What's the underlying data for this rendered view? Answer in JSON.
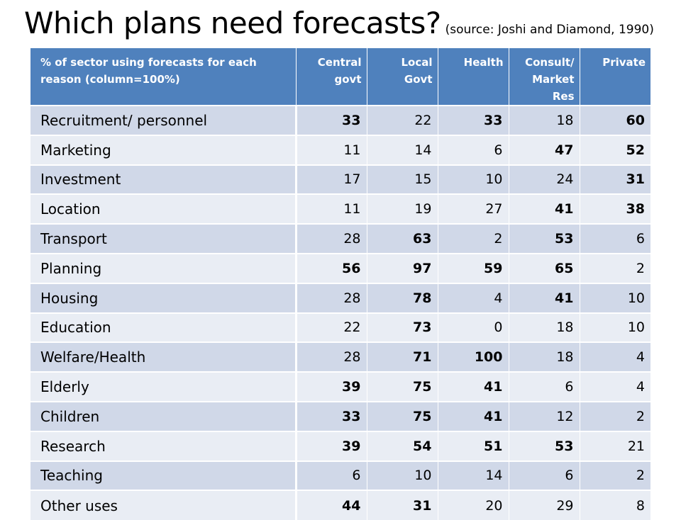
{
  "title": {
    "main": "Which plans need forecasts?",
    "source": "(source: Joshi and Diamond, 1990)"
  },
  "table": {
    "headers": [
      "% of sector using forecasts for each reason (column=100%)",
      "Central govt",
      "Local Govt",
      "Health",
      "Consult/ Market Res",
      "Private"
    ],
    "rows": [
      {
        "label": "Recruitment/ personnel",
        "values": [
          "33",
          "22",
          "33",
          "18",
          "60"
        ],
        "bold": [
          true,
          false,
          true,
          false,
          true
        ]
      },
      {
        "label": "Marketing",
        "values": [
          "11",
          "14",
          "6",
          "47",
          "52"
        ],
        "bold": [
          false,
          false,
          false,
          true,
          true
        ]
      },
      {
        "label": "Investment",
        "values": [
          "17",
          "15",
          "10",
          "24",
          "31"
        ],
        "bold": [
          false,
          false,
          false,
          false,
          true
        ]
      },
      {
        "label": "Location",
        "values": [
          "11",
          "19",
          "27",
          "41",
          "38"
        ],
        "bold": [
          false,
          false,
          false,
          true,
          true
        ]
      },
      {
        "label": "Transport",
        "values": [
          "28",
          "63",
          "2",
          "53",
          "6"
        ],
        "bold": [
          false,
          true,
          false,
          true,
          false
        ]
      },
      {
        "label": "Planning",
        "values": [
          "56",
          "97",
          "59",
          "65",
          "2"
        ],
        "bold": [
          true,
          true,
          true,
          true,
          false
        ]
      },
      {
        "label": "Housing",
        "values": [
          "28",
          "78",
          "4",
          "41",
          "10"
        ],
        "bold": [
          false,
          true,
          false,
          true,
          false
        ]
      },
      {
        "label": "Education",
        "values": [
          "22",
          "73",
          "0",
          "18",
          "10"
        ],
        "bold": [
          false,
          true,
          false,
          false,
          false
        ]
      },
      {
        "label": "Welfare/Health",
        "values": [
          "28",
          "71",
          "100",
          "18",
          "4"
        ],
        "bold": [
          false,
          true,
          true,
          false,
          false
        ]
      },
      {
        "label": "Elderly",
        "values": [
          "39",
          "75",
          "41",
          "6",
          "4"
        ],
        "bold": [
          true,
          true,
          true,
          false,
          false
        ]
      },
      {
        "label": "Children",
        "values": [
          "33",
          "75",
          "41",
          "12",
          "2"
        ],
        "bold": [
          true,
          true,
          true,
          false,
          false
        ]
      },
      {
        "label": "Research",
        "values": [
          "39",
          "54",
          "51",
          "53",
          "21"
        ],
        "bold": [
          true,
          true,
          true,
          true,
          false
        ]
      },
      {
        "label": "Teaching",
        "values": [
          "6",
          "10",
          "14",
          "6",
          "2"
        ],
        "bold": [
          false,
          false,
          false,
          false,
          false
        ]
      },
      {
        "label": "Other uses",
        "values": [
          "44",
          "31",
          "20",
          "29",
          "8"
        ],
        "bold": [
          true,
          true,
          false,
          false,
          false
        ]
      }
    ]
  },
  "colors": {
    "header_bg": "#4f81bd",
    "row_odd": "#d0d8e8",
    "row_even": "#e9edf4"
  }
}
